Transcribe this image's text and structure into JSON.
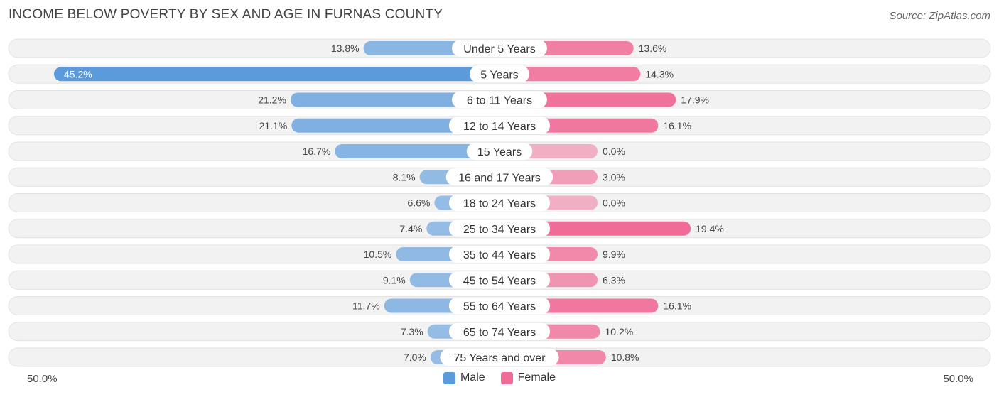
{
  "title": "INCOME BELOW POVERTY BY SEX AND AGE IN FURNAS COUNTY",
  "source": "Source: ZipAtlas.com",
  "axis": {
    "left_label": "50.0%",
    "right_label": "50.0%"
  },
  "legend": [
    {
      "label": "Male",
      "color": "#5b9bdc"
    },
    {
      "label": "Female",
      "color": "#f06c96"
    }
  ],
  "chart_data": {
    "type": "bar",
    "orientation": "horizontal-diverging",
    "xlim": [
      -50,
      50
    ],
    "categories": [
      "Under 5 Years",
      "5 Years",
      "6 to 11 Years",
      "12 to 14 Years",
      "15 Years",
      "16 and 17 Years",
      "18 to 24 Years",
      "25 to 34 Years",
      "35 to 44 Years",
      "45 to 54 Years",
      "55 to 64 Years",
      "65 to 74 Years",
      "75 Years and over"
    ],
    "series": [
      {
        "name": "Male",
        "color": "#5b9bdc",
        "values": [
          13.8,
          45.2,
          21.2,
          21.1,
          16.7,
          8.1,
          6.6,
          7.4,
          10.5,
          9.1,
          11.7,
          7.3,
          7.0
        ],
        "labels": [
          "13.8%",
          "45.2%",
          "21.2%",
          "21.1%",
          "16.7%",
          "8.1%",
          "6.6%",
          "7.4%",
          "10.5%",
          "9.1%",
          "11.7%",
          "7.3%",
          "7.0%"
        ]
      },
      {
        "name": "Female",
        "color": "#f06c96",
        "values": [
          13.6,
          14.3,
          17.9,
          16.1,
          0.0,
          3.0,
          0.0,
          19.4,
          9.9,
          6.3,
          16.1,
          10.2,
          10.8
        ],
        "labels": [
          "13.6%",
          "14.3%",
          "17.9%",
          "16.1%",
          "0.0%",
          "3.0%",
          "0.0%",
          "19.4%",
          "9.9%",
          "6.3%",
          "16.1%",
          "10.2%",
          "10.8%"
        ]
      }
    ]
  }
}
